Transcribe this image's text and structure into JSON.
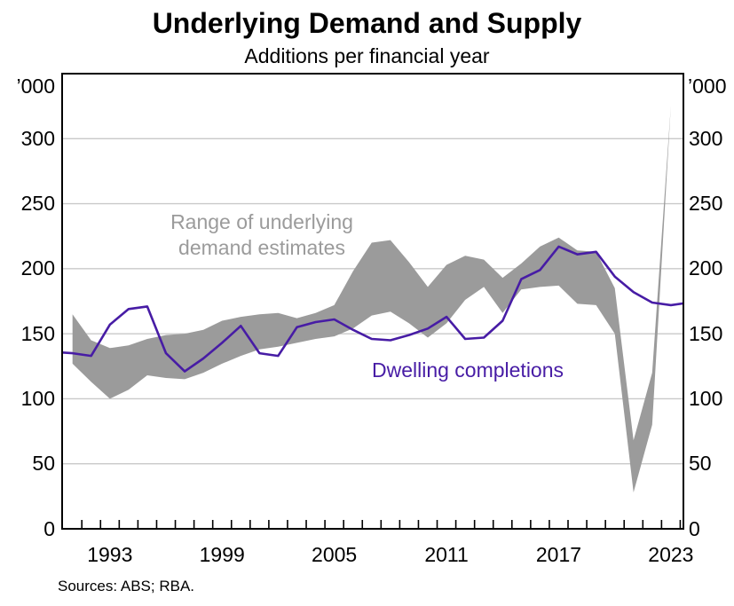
{
  "title": "Underlying Demand and Supply",
  "subtitle": "Additions per financial year",
  "unit_label_left": "’000",
  "unit_label_right": "’000",
  "source_note": "Sources: ABS; RBA.",
  "annotations": {
    "band_label_line1": "Range of underlying",
    "band_label_line2": "demand estimates",
    "line_label": "Dwelling completions"
  },
  "colors": {
    "completions_line": "#471CA5",
    "band_fill": "#9B9B9B",
    "gridline": "#C9C9C9",
    "frame": "#000000"
  },
  "chart_data": {
    "type": "line+band",
    "title": "Underlying Demand and Supply",
    "subtitle": "Additions per financial year",
    "unit": "'000 additions per financial year",
    "grid": "horizontal",
    "ylim": [
      0,
      350
    ],
    "y_tick_labels": [
      0,
      50,
      100,
      150,
      200,
      250,
      300
    ],
    "x_tick_labels": [
      1993,
      1999,
      2005,
      2011,
      2017,
      2023
    ],
    "series": [
      {
        "name": "Dwelling completions",
        "style": "line",
        "years": [
          1990,
          1991,
          1992,
          1993,
          1994,
          1995,
          1996,
          1997,
          1998,
          1999,
          2000,
          2001,
          2002,
          2003,
          2004,
          2005,
          2006,
          2007,
          2008,
          2009,
          2010,
          2011,
          2012,
          2013,
          2014,
          2015,
          2016,
          2017,
          2018,
          2019,
          2020,
          2021,
          2022,
          2023,
          2024
        ],
        "values": [
          136,
          135,
          133,
          157,
          169,
          171,
          135,
          121,
          131,
          143,
          156,
          135,
          133,
          155,
          159,
          161,
          153,
          146,
          145,
          149,
          154,
          163,
          146,
          147,
          160,
          192,
          199,
          217,
          211,
          213,
          194,
          182,
          174,
          172,
          174
        ]
      },
      {
        "name": "Range of underlying demand estimates",
        "style": "band",
        "years": [
          1991,
          1992,
          1993,
          1994,
          1995,
          1996,
          1997,
          1998,
          1999,
          2000,
          2001,
          2002,
          2003,
          2004,
          2005,
          2006,
          2007,
          2008,
          2009,
          2010,
          2011,
          2012,
          2013,
          2014,
          2015,
          2016,
          2017,
          2018,
          2019,
          2020,
          2021,
          2022,
          2023
        ],
        "low": [
          127,
          113,
          100,
          107,
          118,
          116,
          115,
          120,
          127,
          133,
          138,
          140,
          143,
          146,
          148,
          154,
          164,
          167,
          158,
          147,
          158,
          176,
          186,
          166,
          184,
          186,
          187,
          173,
          172,
          150,
          28,
          80,
          326
        ],
        "high": [
          165,
          145,
          139,
          141,
          146,
          149,
          150,
          153,
          160,
          163,
          165,
          166,
          162,
          166,
          172,
          198,
          220,
          222,
          205,
          186,
          203,
          210,
          207,
          193,
          204,
          217,
          224,
          214,
          213,
          185,
          68,
          120,
          326
        ]
      }
    ]
  }
}
